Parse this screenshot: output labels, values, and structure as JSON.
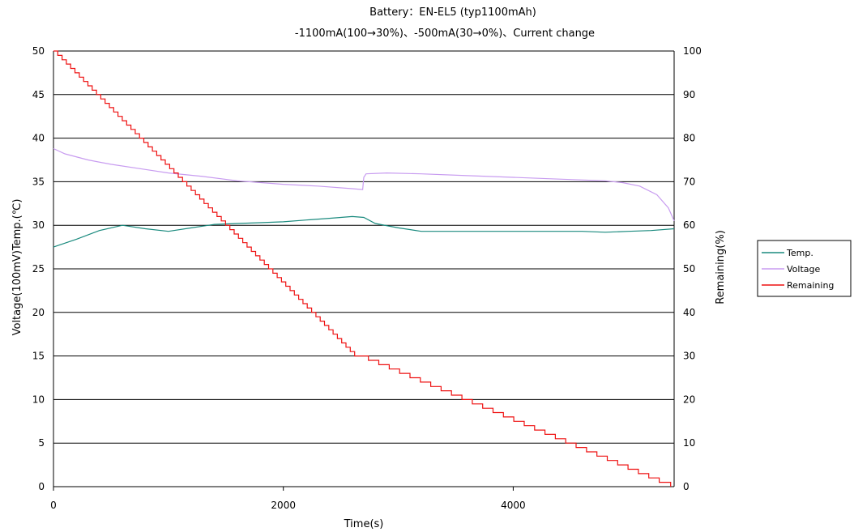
{
  "chart_data": {
    "type": "line",
    "title": "Battery：EN-EL5 (typ1100mAh)",
    "subtitle": "-1100mA(100→30%)、-500mA(30→0%)、Current change",
    "xlabel": "Time(s)",
    "ylabel": "Voltage(100mV)Temp.(℃)",
    "y2label": "Remaining(%)",
    "xlim": [
      0,
      5400
    ],
    "ylim": [
      0,
      50
    ],
    "y2lim": [
      0,
      100
    ],
    "x_ticks": [
      "0",
      "2000",
      "4000"
    ],
    "y_ticks": [
      "0",
      "5",
      "10",
      "15",
      "20",
      "25",
      "30",
      "35",
      "40",
      "45",
      "50"
    ],
    "y2_ticks": [
      "0",
      "10",
      "20",
      "30",
      "40",
      "50",
      "60",
      "70",
      "80",
      "90",
      "100"
    ],
    "grid": "horizontal",
    "legend_position": "right",
    "series": [
      {
        "name": "Temp.",
        "axis": "left",
        "color": "#1a8a7e",
        "x": [
          0,
          200,
          400,
          600,
          800,
          1000,
          1200,
          1400,
          1600,
          1800,
          2000,
          2200,
          2400,
          2600,
          2700,
          2800,
          3000,
          3200,
          3400,
          3600,
          3800,
          4000,
          4200,
          4400,
          4600,
          4800,
          5000,
          5200,
          5400
        ],
        "y": [
          27.5,
          28.4,
          29.4,
          30.0,
          29.6,
          29.3,
          29.7,
          30.1,
          30.2,
          30.3,
          30.4,
          30.6,
          30.8,
          31.0,
          30.9,
          30.2,
          29.7,
          29.3,
          29.3,
          29.3,
          29.3,
          29.3,
          29.3,
          29.3,
          29.3,
          29.2,
          29.3,
          29.4,
          29.6
        ]
      },
      {
        "name": "Voltage",
        "axis": "left",
        "color": "#c89cf0",
        "x": [
          0,
          100,
          300,
          500,
          800,
          1000,
          1300,
          1600,
          2000,
          2300,
          2600,
          2690,
          2700,
          2720,
          2900,
          3200,
          3600,
          4000,
          4400,
          4800,
          4950,
          5100,
          5250,
          5350,
          5400
        ],
        "y": [
          38.8,
          38.2,
          37.5,
          37.0,
          36.4,
          36.0,
          35.6,
          35.1,
          34.7,
          34.5,
          34.2,
          34.1,
          35.5,
          35.9,
          36.0,
          35.9,
          35.7,
          35.5,
          35.3,
          35.1,
          34.9,
          34.5,
          33.5,
          32.0,
          30.5
        ]
      },
      {
        "name": "Remaining",
        "axis": "right",
        "color": "#ee1111",
        "x": [
          0,
          2620,
          2650,
          5270,
          5370
        ],
        "y": [
          100,
          30,
          30,
          1,
          0
        ]
      }
    ]
  }
}
